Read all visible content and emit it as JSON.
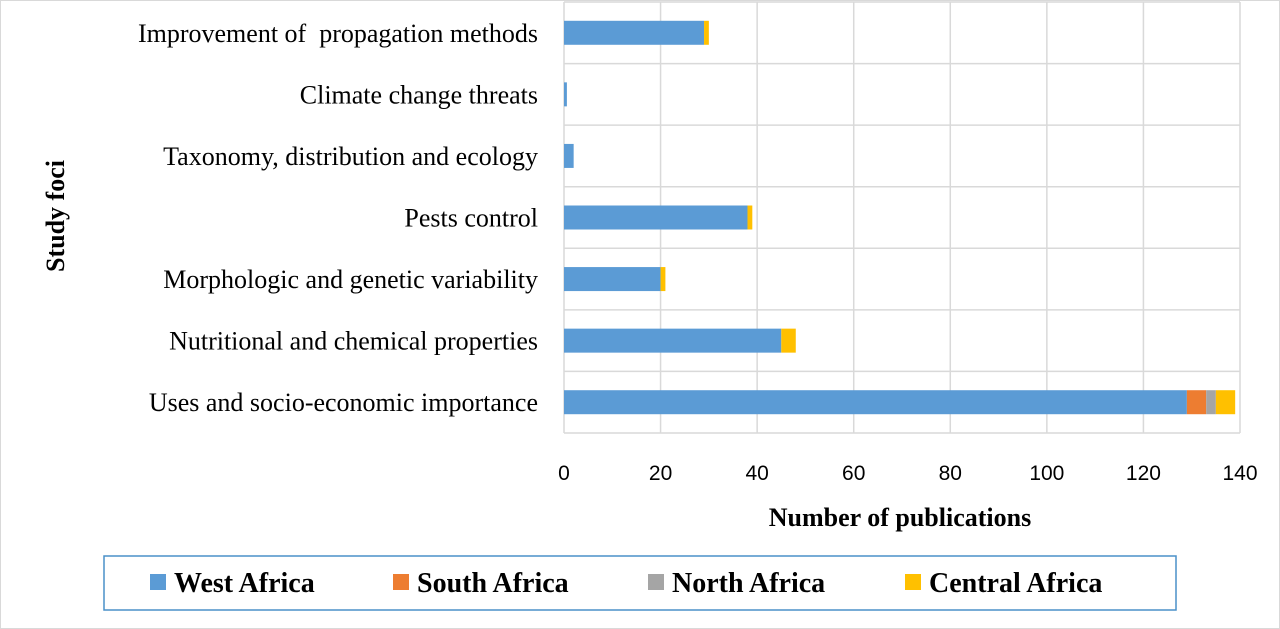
{
  "chart_data": {
    "type": "bar",
    "orientation": "horizontal",
    "stacked": true,
    "categories": [
      "Improvement of  propagation methods",
      "Climate change threats",
      "Taxonomy, distribution and ecology",
      "Pests control",
      "Morphologic and genetic variability",
      "Nutritional and chemical properties",
      "Uses and socio-economic importance"
    ],
    "series": [
      {
        "name": "West Africa",
        "color": "#5b9bd5",
        "values": [
          29,
          0.6,
          2,
          38,
          20,
          45,
          129
        ]
      },
      {
        "name": "South Africa",
        "color": "#ed7d31",
        "values": [
          0,
          0,
          0,
          0,
          0,
          0,
          4
        ]
      },
      {
        "name": "North Africa",
        "color": "#a5a5a5",
        "values": [
          0,
          0,
          0,
          0,
          0,
          0,
          2
        ]
      },
      {
        "name": "Central Africa",
        "color": "#ffc000",
        "values": [
          1,
          0,
          0,
          1,
          1,
          3,
          4
        ]
      }
    ],
    "xlabel": "Number of publications",
    "ylabel": "Study foci",
    "xlim": [
      0,
      140
    ],
    "xticks": [
      0,
      20,
      40,
      60,
      80,
      100,
      120,
      140
    ],
    "grid": true,
    "legend_position": "bottom"
  }
}
